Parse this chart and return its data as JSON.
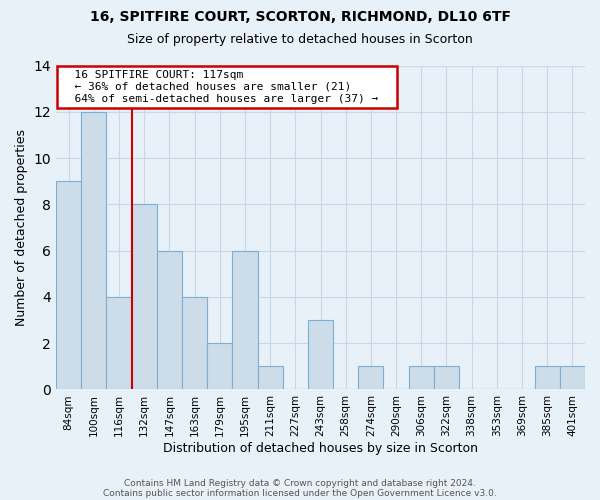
{
  "title": "16, SPITFIRE COURT, SCORTON, RICHMOND, DL10 6TF",
  "subtitle": "Size of property relative to detached houses in Scorton",
  "xlabel": "Distribution of detached houses by size in Scorton",
  "ylabel": "Number of detached properties",
  "footer_line1": "Contains HM Land Registry data © Crown copyright and database right 2024.",
  "footer_line2": "Contains public sector information licensed under the Open Government Licence v3.0.",
  "bin_labels": [
    "84sqm",
    "100sqm",
    "116sqm",
    "132sqm",
    "147sqm",
    "163sqm",
    "179sqm",
    "195sqm",
    "211sqm",
    "227sqm",
    "243sqm",
    "258sqm",
    "274sqm",
    "290sqm",
    "306sqm",
    "322sqm",
    "338sqm",
    "353sqm",
    "369sqm",
    "385sqm",
    "401sqm"
  ],
  "bar_heights": [
    9,
    12,
    4,
    8,
    6,
    4,
    2,
    6,
    1,
    0,
    3,
    0,
    1,
    0,
    1,
    1,
    0,
    0,
    0,
    1,
    1
  ],
  "bar_color": "#ccdce8",
  "bar_edge_color": "#7bafd4",
  "subject_bar_index": 2,
  "subject_line_color": "#cc0000",
  "ylim": [
    0,
    14
  ],
  "yticks": [
    0,
    2,
    4,
    6,
    8,
    10,
    12,
    14
  ],
  "annotation_title": "16 SPITFIRE COURT: 117sqm",
  "annotation_line1": "← 36% of detached houses are smaller (21)",
  "annotation_line2": "64% of semi-detached houses are larger (37) →",
  "annotation_box_color": "#ffffff",
  "annotation_box_edge": "#cc0000",
  "grid_color": "#c8d8e8",
  "background_color": "#e8f0f8"
}
